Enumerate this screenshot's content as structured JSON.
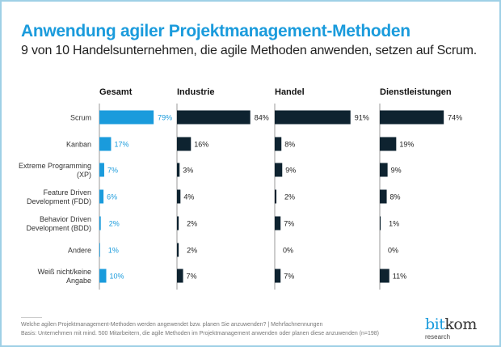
{
  "title": "Anwendung agiler Projektmanagement-Methoden",
  "subtitle": "9 von 10 Handelsunternehmen, die agile Methoden anwenden, setzen auf Scrum.",
  "footnote_question": "Welche agilen Projektmanagement-Methoden werden angewendet bzw. planen Sie anzuwenden? | Mehrfachnennungen",
  "footnote_basis": "Basis: Unternehmen mit mind. 500 Mitarbeitern, die agile Methoden im Projektmanagement anwenden oder planen diese anzuwenden (n=198)",
  "logo": {
    "bit": "bit",
    "kom": "kom",
    "sub": "research"
  },
  "colors": {
    "accent": "#1a9bdc",
    "dark": "#0e2330"
  },
  "chart_data": {
    "type": "bar",
    "orientation": "horizontal",
    "unit": "%",
    "categories": [
      "Scrum",
      "Kanban",
      "Extreme Programming (XP)",
      "Feature Driven Development (FDD)",
      "Behavior Driven Development (BDD)",
      "Andere",
      "Weiß nicht/keine Angabe"
    ],
    "category_lines": [
      [
        "Scrum"
      ],
      [
        "Kanban"
      ],
      [
        "Extreme Programming",
        "(XP)"
      ],
      [
        "Feature Driven",
        "Development (FDD)"
      ],
      [
        "Behavior Driven",
        "Development (BDD)"
      ],
      [
        "Andere"
      ],
      [
        "Weiß nicht/keine",
        "Angabe"
      ]
    ],
    "series": [
      {
        "name": "Gesamt",
        "values": [
          79,
          17,
          7,
          6,
          2,
          1,
          10
        ],
        "color": "#1a9bdc"
      },
      {
        "name": "Industrie",
        "values": [
          84,
          16,
          3,
          4,
          2,
          2,
          7
        ],
        "color": "#0e2330"
      },
      {
        "name": "Handel",
        "values": [
          91,
          8,
          9,
          2,
          7,
          0,
          7
        ],
        "color": "#0e2330"
      },
      {
        "name": "Dienstleistungen",
        "values": [
          74,
          19,
          9,
          8,
          1,
          0,
          11
        ],
        "color": "#0e2330"
      }
    ]
  }
}
